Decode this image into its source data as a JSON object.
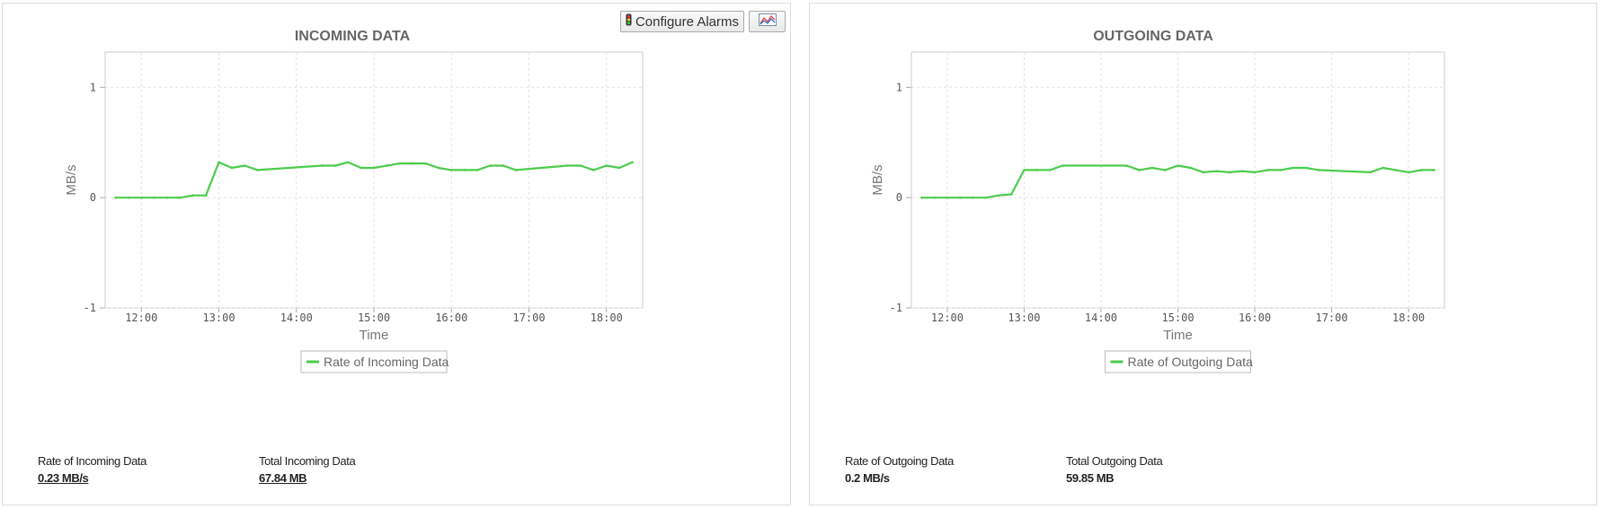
{
  "toolbar": {
    "configure_alarms_label": "Configure Alarms",
    "alarm_icon": "traffic-light-icon",
    "chart_type_icon": "chart-type-icon"
  },
  "colors": {
    "series": "#4ccc4c",
    "grid": "#e3e3e3",
    "axis": "#cccccc"
  },
  "chart_data": [
    {
      "type": "line",
      "title": "INCOMING DATA",
      "xlabel": "Time",
      "ylabel": "MB/s",
      "ylim": [
        -1,
        1.0
      ],
      "yticks": [
        "1",
        "0",
        "-1"
      ],
      "xticks": [
        "12:00",
        "13:00",
        "14:00",
        "15:00",
        "16:00",
        "17:00",
        "18:00"
      ],
      "grid": true,
      "legend": "bottom-center",
      "series": [
        {
          "name": "Rate of Incoming Data",
          "x": [
            "11:40",
            "11:50",
            "12:00",
            "12:10",
            "12:20",
            "12:30",
            "12:40",
            "12:50",
            "13:00",
            "13:10",
            "13:20",
            "13:30",
            "14:20",
            "14:30",
            "14:40",
            "14:50",
            "15:00",
            "15:10",
            "15:20",
            "15:30",
            "15:40",
            "15:50",
            "16:00",
            "16:10",
            "16:20",
            "16:30",
            "16:40",
            "16:50",
            "17:30",
            "17:40",
            "17:50",
            "18:00",
            "18:10",
            "18:20"
          ],
          "values": [
            0,
            0,
            0,
            0,
            0,
            0,
            0.02,
            0.02,
            0.32,
            0.27,
            0.29,
            0.25,
            0.29,
            0.29,
            0.32,
            0.27,
            0.27,
            0.29,
            0.31,
            0.31,
            0.31,
            0.27,
            0.25,
            0.25,
            0.25,
            0.29,
            0.29,
            0.25,
            0.29,
            0.29,
            0.25,
            0.29,
            0.27,
            0.32
          ]
        }
      ]
    },
    {
      "type": "line",
      "title": "OUTGOING DATA",
      "xlabel": "Time",
      "ylabel": "MB/s",
      "ylim": [
        -1,
        1.0
      ],
      "yticks": [
        "1",
        "0",
        "-1"
      ],
      "xticks": [
        "12:00",
        "13:00",
        "14:00",
        "15:00",
        "16:00",
        "17:00",
        "18:00"
      ],
      "grid": true,
      "legend": "bottom-center",
      "series": [
        {
          "name": "Rate of Outgoing Data",
          "x": [
            "11:40",
            "11:50",
            "12:00",
            "12:10",
            "12:20",
            "12:30",
            "12:40",
            "12:50",
            "13:00",
            "13:10",
            "13:20",
            "13:30",
            "14:20",
            "14:30",
            "14:40",
            "14:50",
            "15:00",
            "15:10",
            "15:20",
            "15:30",
            "15:40",
            "15:50",
            "16:00",
            "16:10",
            "16:20",
            "16:30",
            "16:40",
            "16:50",
            "17:30",
            "17:40",
            "17:50",
            "18:00",
            "18:10",
            "18:20"
          ],
          "values": [
            0,
            0,
            0,
            0,
            0,
            0,
            0.02,
            0.03,
            0.25,
            0.25,
            0.25,
            0.29,
            0.29,
            0.25,
            0.27,
            0.25,
            0.29,
            0.27,
            0.23,
            0.24,
            0.23,
            0.24,
            0.23,
            0.25,
            0.25,
            0.27,
            0.27,
            0.25,
            0.23,
            0.27,
            0.25,
            0.23,
            0.25,
            0.25
          ]
        }
      ]
    }
  ],
  "stats": [
    {
      "rate_label": "Rate of Incoming Data",
      "rate_value": "0.23 MB/s",
      "total_label": "Total Incoming Data",
      "total_value": "67.84 MB"
    },
    {
      "rate_label": "Rate of Outgoing Data",
      "rate_value": "0.2 MB/s",
      "total_label": "Total Outgoing Data",
      "total_value": "59.85 MB"
    }
  ]
}
